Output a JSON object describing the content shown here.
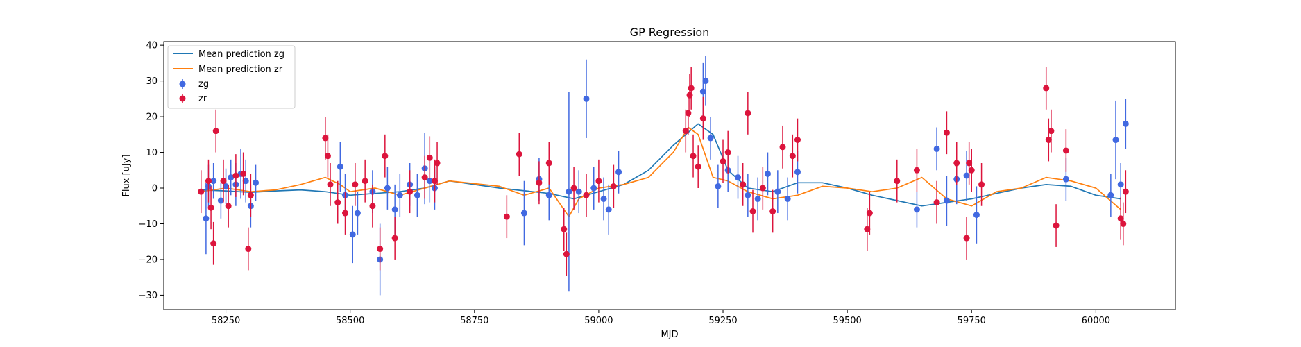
{
  "chart_data": {
    "type": "scatter",
    "title": "GP Regression",
    "xlabel": "MJD",
    "ylabel": "Flux [uJy]",
    "xlim": [
      58125,
      60160
    ],
    "ylim": [
      -34,
      41
    ],
    "xticks": [
      58250,
      58500,
      58750,
      59000,
      59250,
      59500,
      59750,
      60000
    ],
    "yticks": [
      -30,
      -20,
      -10,
      0,
      10,
      20,
      30,
      40
    ],
    "grid": false,
    "legend_position": "top-left",
    "legend": [
      "Mean prediction zg",
      "Mean prediction zr",
      "zg",
      "zr"
    ],
    "colors": {
      "zg_line": "#1f77b4",
      "zr_line": "#ff7f0e",
      "zg_points": "#4169e1",
      "zr_points": "#dc143c"
    },
    "series": [
      {
        "name": "Mean prediction zg",
        "kind": "line",
        "color": "#1f77b4",
        "x": [
          58200,
          58250,
          58300,
          58350,
          58400,
          58450,
          58500,
          58550,
          58600,
          58650,
          58700,
          58800,
          58900,
          58950,
          59000,
          59050,
          59100,
          59150,
          59200,
          59230,
          59260,
          59300,
          59350,
          59400,
          59450,
          59500,
          59550,
          59600,
          59650,
          59700,
          59750,
          59800,
          59850,
          59900,
          59950,
          60000,
          60050
        ],
        "y": [
          -0.5,
          -0.8,
          -1.2,
          -0.8,
          -0.5,
          -1,
          -2,
          -1.5,
          -1,
          0,
          2,
          0,
          -1.5,
          -3,
          -1,
          1,
          5,
          12,
          18,
          15,
          5,
          0,
          -1,
          1.5,
          1.5,
          0,
          -2,
          -3.5,
          -5,
          -4,
          -3,
          -1.5,
          0,
          1,
          0.5,
          -2,
          -3
        ]
      },
      {
        "name": "Mean prediction zr",
        "kind": "line",
        "color": "#ff7f0e",
        "x": [
          58200,
          58250,
          58300,
          58350,
          58400,
          58450,
          58480,
          58500,
          58550,
          58600,
          58650,
          58700,
          58800,
          58850,
          58900,
          58940,
          58960,
          59000,
          59050,
          59100,
          59150,
          59180,
          59200,
          59230,
          59260,
          59300,
          59350,
          59400,
          59450,
          59500,
          59550,
          59600,
          59650,
          59700,
          59750,
          59800,
          59850,
          59900,
          59950,
          60000,
          60050
        ],
        "y": [
          -1,
          0,
          -1,
          -0.5,
          1,
          3,
          1,
          -1,
          0,
          -2,
          0,
          2,
          0.5,
          -2,
          0,
          -8,
          -3,
          0,
          1,
          3,
          10,
          17,
          15,
          3,
          2,
          -1,
          -3,
          -2,
          0.5,
          0,
          -1,
          0,
          3,
          -3,
          -5,
          -1,
          0,
          3,
          2,
          0,
          -6
        ]
      },
      {
        "name": "zg",
        "kind": "errorbar",
        "color": "#4169e1",
        "x": [
          58210,
          58215,
          58225,
          58240,
          58250,
          58260,
          58270,
          58280,
          58290,
          58300,
          58310,
          58480,
          58490,
          58505,
          58515,
          58545,
          58560,
          58575,
          58590,
          58600,
          58620,
          58635,
          58650,
          58660,
          58670,
          58850,
          58880,
          58900,
          58940,
          58960,
          58975,
          58990,
          59010,
          59020,
          59040,
          59210,
          59215,
          59225,
          59240,
          59260,
          59280,
          59300,
          59320,
          59340,
          59360,
          59380,
          59400,
          59640,
          59680,
          59700,
          59720,
          59740,
          59760,
          59940,
          60030,
          60040,
          60050,
          60060
        ],
        "y": [
          -8.5,
          0.5,
          2,
          -3.5,
          0.5,
          3,
          1,
          4,
          2,
          -5,
          1.5,
          6,
          -2,
          -13,
          -7,
          -1,
          -20,
          0,
          -6,
          -2,
          1,
          -2,
          5.5,
          2,
          0,
          -7,
          2.5,
          -2,
          -1,
          -1,
          25,
          0,
          -3,
          -6,
          4.5,
          27,
          30,
          14,
          0.5,
          5,
          3,
          -2,
          -3,
          4,
          -1,
          -3,
          4.5,
          -6,
          11,
          -3.5,
          2.5,
          3.5,
          -7.5,
          2.5,
          -2,
          13.5,
          1,
          18
        ],
        "yerr": [
          10,
          6,
          5,
          5,
          5,
          5,
          6,
          7,
          6,
          6,
          5,
          7,
          6,
          8,
          6,
          6,
          10,
          6,
          7,
          6,
          6,
          6,
          10,
          6,
          6,
          9,
          6,
          7,
          28,
          6,
          11,
          6,
          6,
          7,
          6,
          8,
          7,
          6,
          6,
          6,
          6,
          6,
          6,
          6,
          6,
          6,
          6,
          5,
          6,
          7,
          7,
          7,
          8,
          6,
          6,
          11,
          6,
          7
        ]
      },
      {
        "name": "zr",
        "kind": "errorbar",
        "color": "#dc143c",
        "x": [
          58200,
          58215,
          58220,
          58225,
          58230,
          58245,
          58255,
          58270,
          58285,
          58295,
          58300,
          58450,
          58455,
          58460,
          58475,
          58490,
          58510,
          58530,
          58545,
          58560,
          58570,
          58590,
          58620,
          58650,
          58660,
          58670,
          58675,
          58815,
          58840,
          58880,
          58900,
          58930,
          58935,
          58950,
          58975,
          59000,
          59030,
          59175,
          59180,
          59183,
          59186,
          59190,
          59200,
          59210,
          59250,
          59260,
          59290,
          59300,
          59310,
          59330,
          59350,
          59370,
          59390,
          59400,
          59540,
          59545,
          59600,
          59640,
          59680,
          59700,
          59720,
          59740,
          59745,
          59750,
          59770,
          59900,
          59905,
          59910,
          59920,
          59940,
          60050,
          60055,
          60060
        ],
        "y": [
          -1,
          2,
          -5.5,
          -15.5,
          16,
          2,
          -5,
          3.5,
          4,
          -17,
          -2,
          14,
          9,
          1,
          -4,
          -7,
          1,
          2,
          -5,
          -17,
          9,
          -14,
          -1,
          3,
          8.5,
          2,
          7,
          -8,
          9.5,
          1.5,
          7,
          -11.5,
          -18.5,
          0,
          -2,
          2,
          0.5,
          16,
          21,
          26,
          28,
          9,
          6,
          19.5,
          7.5,
          10,
          1,
          21,
          -6.5,
          0,
          -6.5,
          11.5,
          9,
          13.5,
          -11.5,
          -7,
          2,
          5,
          -4,
          15.5,
          7,
          -14,
          7,
          5,
          1,
          28,
          13.5,
          16,
          -10.5,
          10.5,
          -8.5,
          -10,
          -1
        ]
      }
    ]
  }
}
